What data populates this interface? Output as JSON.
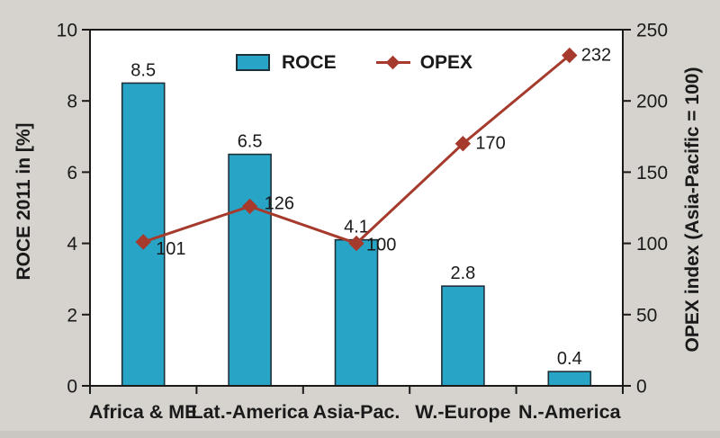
{
  "chart_data": {
    "type": "combo-bar-line",
    "categories": [
      "Africa & ME",
      "Lat.-America",
      "Asia-Pac.",
      "W.-Europe",
      "N.-America"
    ],
    "series": [
      {
        "name": "ROCE",
        "type": "bar",
        "axis": "left",
        "values": [
          8.5,
          6.5,
          4.1,
          2.8,
          0.4
        ],
        "labels": [
          "8.5",
          "6.5",
          "4.1",
          "2.8",
          "0.4"
        ],
        "color": "#28a4c7"
      },
      {
        "name": "OPEX",
        "type": "line",
        "axis": "right",
        "marker": "diamond",
        "values": [
          101,
          126,
          100,
          170,
          232
        ],
        "labels": [
          "101",
          "126",
          "100",
          "170",
          "232"
        ],
        "color": "#a63a2c"
      }
    ],
    "left_axis": {
      "label": "ROCE 2011 in [%]",
      "min": 0,
      "max": 10,
      "step": 2,
      "ticks": [
        0,
        2,
        4,
        6,
        8,
        10
      ]
    },
    "right_axis": {
      "label": "OPEX index (Asia-Pacific = 100)",
      "min": 0,
      "max": 250,
      "step": 50,
      "ticks": [
        0,
        50,
        100,
        150,
        200,
        250
      ]
    },
    "legend": {
      "position": "top-inside",
      "items": [
        {
          "label": "ROCE",
          "marker": "square"
        },
        {
          "label": "OPEX",
          "marker": "diamond-line"
        }
      ]
    },
    "grid": false
  },
  "colors": {
    "background": "#d6d2cd",
    "plot_background": "#ffffff",
    "bar_fill": "#28a4c7",
    "bar_border": "#1e3038",
    "line": "#a63a2c",
    "axis": "#1a1a1a",
    "text": "#1a1a1a"
  }
}
